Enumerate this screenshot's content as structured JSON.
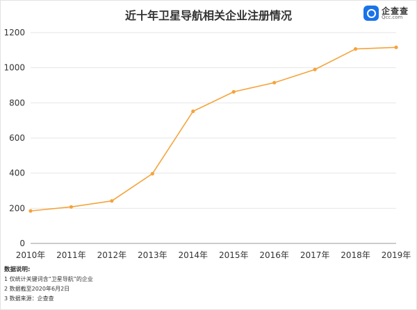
{
  "header": {
    "title": "近十年卫星导航相关企业注册情况",
    "logo_cn": "企查查",
    "logo_en": "Qcc.com"
  },
  "notes": {
    "heading": "数据说明:",
    "lines": [
      "1 仅统计关键词含“卫星导航”的企业",
      "2 数据截至2020年6月2日",
      "3 数据来源：企查查"
    ]
  },
  "colors": {
    "line": "#F5A33A",
    "grid": "#E6E6E6",
    "axis": "#333333"
  },
  "chart_data": {
    "type": "line",
    "title": "近十年卫星导航相关企业注册情况",
    "categories": [
      "2010年",
      "2011年",
      "2012年",
      "2013年",
      "2014年",
      "2015年",
      "2016年",
      "2017年",
      "2018年",
      "2019年"
    ],
    "series": [
      {
        "values": [
          185,
          208,
          242,
          397,
          752,
          863,
          915,
          990,
          1107,
          1116
        ]
      }
    ],
    "ylim": [
      0,
      1200
    ],
    "yticks": [
      0,
      200,
      400,
      600,
      800,
      1000,
      1200
    ],
    "grid": true,
    "xlabel": "",
    "ylabel": ""
  }
}
